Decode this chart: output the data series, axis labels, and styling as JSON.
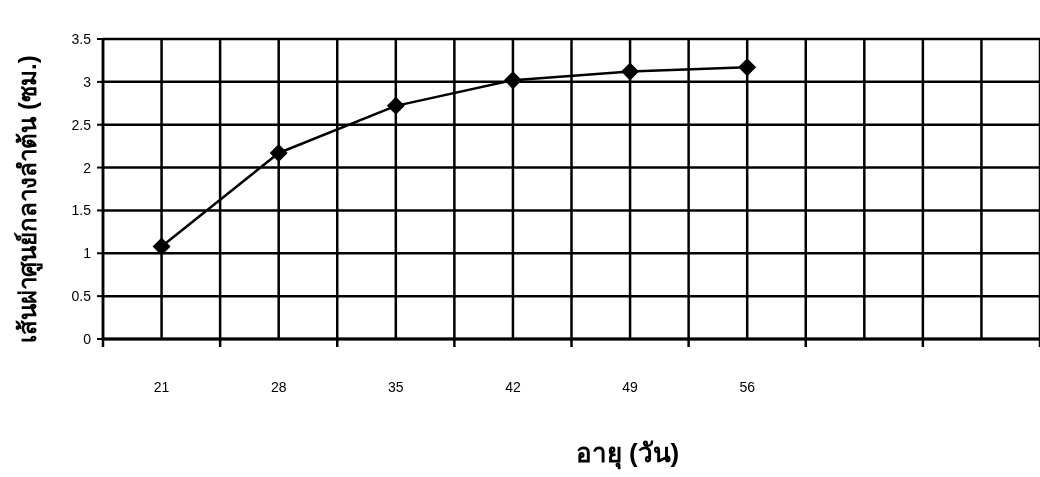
{
  "chart_data": {
    "type": "line",
    "xlabel": "อายุ (วัน)",
    "ylabel": "เส้นผ่าศูนย์กลางลำต้น (ซม.)",
    "categories": [
      "21",
      "28",
      "35",
      "42",
      "49",
      "56",
      null,
      null
    ],
    "series": [
      {
        "color": "#000000",
        "values": [
          1.08,
          2.17,
          2.72,
          3.02,
          3.12,
          3.17,
          null,
          null
        ]
      }
    ],
    "ylim": [
      0,
      3.5
    ],
    "yticks": [
      0,
      0.5,
      1,
      1.5,
      2,
      2.5,
      3,
      3.5
    ],
    "grid": true,
    "marker": "diamond",
    "line_style": "solid"
  }
}
